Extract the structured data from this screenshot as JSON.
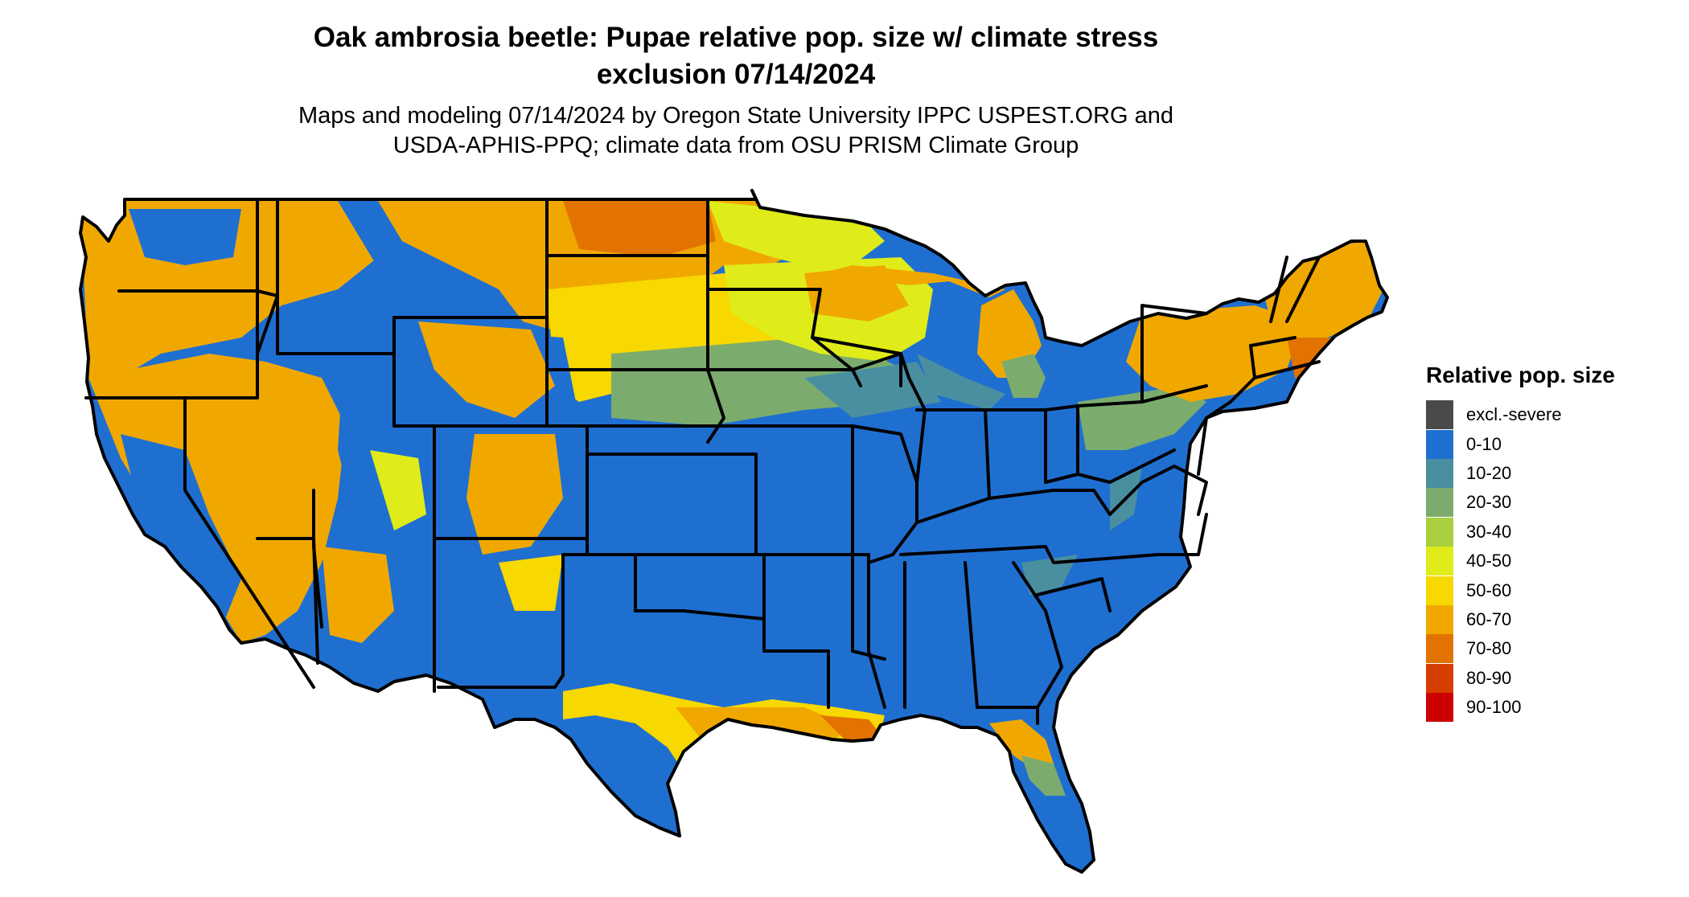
{
  "title_line1": "Oak ambrosia beetle: Pupae relative pop. size w/ climate stress",
  "title_line2": "exclusion 07/14/2024",
  "subtitle_line1": "Maps and modeling 07/14/2024 by Oregon State University IPPC USPEST.ORG and",
  "subtitle_line2": "USDA-APHIS-PPQ; climate data from OSU PRISM Climate Group",
  "legend": {
    "title": "Relative pop. size",
    "items": [
      {
        "label": "excl.-severe",
        "color": "#4a4a4a"
      },
      {
        "label": "0-10",
        "color": "#1f6fd1"
      },
      {
        "label": "10-20",
        "color": "#4a8fa0"
      },
      {
        "label": "20-30",
        "color": "#7bac6e"
      },
      {
        "label": "30-40",
        "color": "#a9cf3f"
      },
      {
        "label": "40-50",
        "color": "#dfec1a"
      },
      {
        "label": "50-60",
        "color": "#f7d800"
      },
      {
        "label": "60-70",
        "color": "#f0a800"
      },
      {
        "label": "70-80",
        "color": "#e37300"
      },
      {
        "label": "80-90",
        "color": "#d63e00"
      },
      {
        "label": "90-100",
        "color": "#cc0000"
      }
    ]
  },
  "map": {
    "outline_color": "#000000",
    "land_default_color": "#1f6fd1"
  }
}
